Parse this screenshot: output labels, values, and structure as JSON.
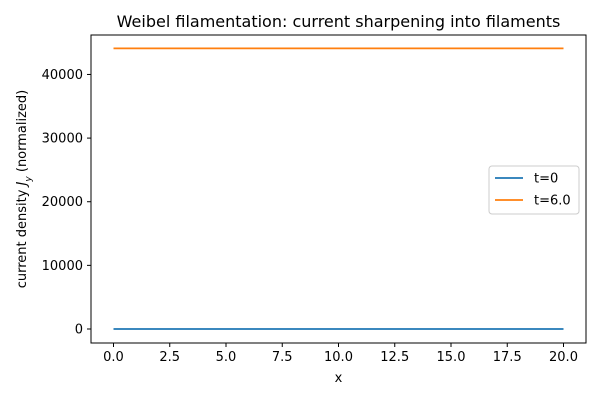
{
  "chart_data": {
    "type": "line",
    "title": "Weibel filamentation: current sharpening into filaments",
    "xlabel": "x",
    "ylabel_prefix": "current density ",
    "ylabel_var": "J",
    "ylabel_sub": "y",
    "ylabel_suffix": " (normalized)",
    "xlim": [
      -1.0,
      21.0
    ],
    "ylim": [
      -2200,
      46200
    ],
    "x_ticks": [
      0,
      2.5,
      5,
      7.5,
      10,
      12.5,
      15,
      17.5,
      20
    ],
    "x_tick_labels": [
      "0.0",
      "2.5",
      "5.0",
      "7.5",
      "10.0",
      "12.5",
      "15.0",
      "17.5",
      "20.0"
    ],
    "y_ticks": [
      0,
      10000,
      20000,
      30000,
      40000
    ],
    "y_tick_labels": [
      "0",
      "10000",
      "20000",
      "30000",
      "40000"
    ],
    "grid": false,
    "legend_position": "center-right",
    "series": [
      {
        "name": "t=0",
        "color": "#1f77b4",
        "x": [
          0,
          20
        ],
        "y": [
          0,
          0
        ]
      },
      {
        "name": "t=6.0",
        "color": "#ff7f0e",
        "x": [
          0,
          20
        ],
        "y": [
          44100,
          44100
        ]
      }
    ]
  }
}
